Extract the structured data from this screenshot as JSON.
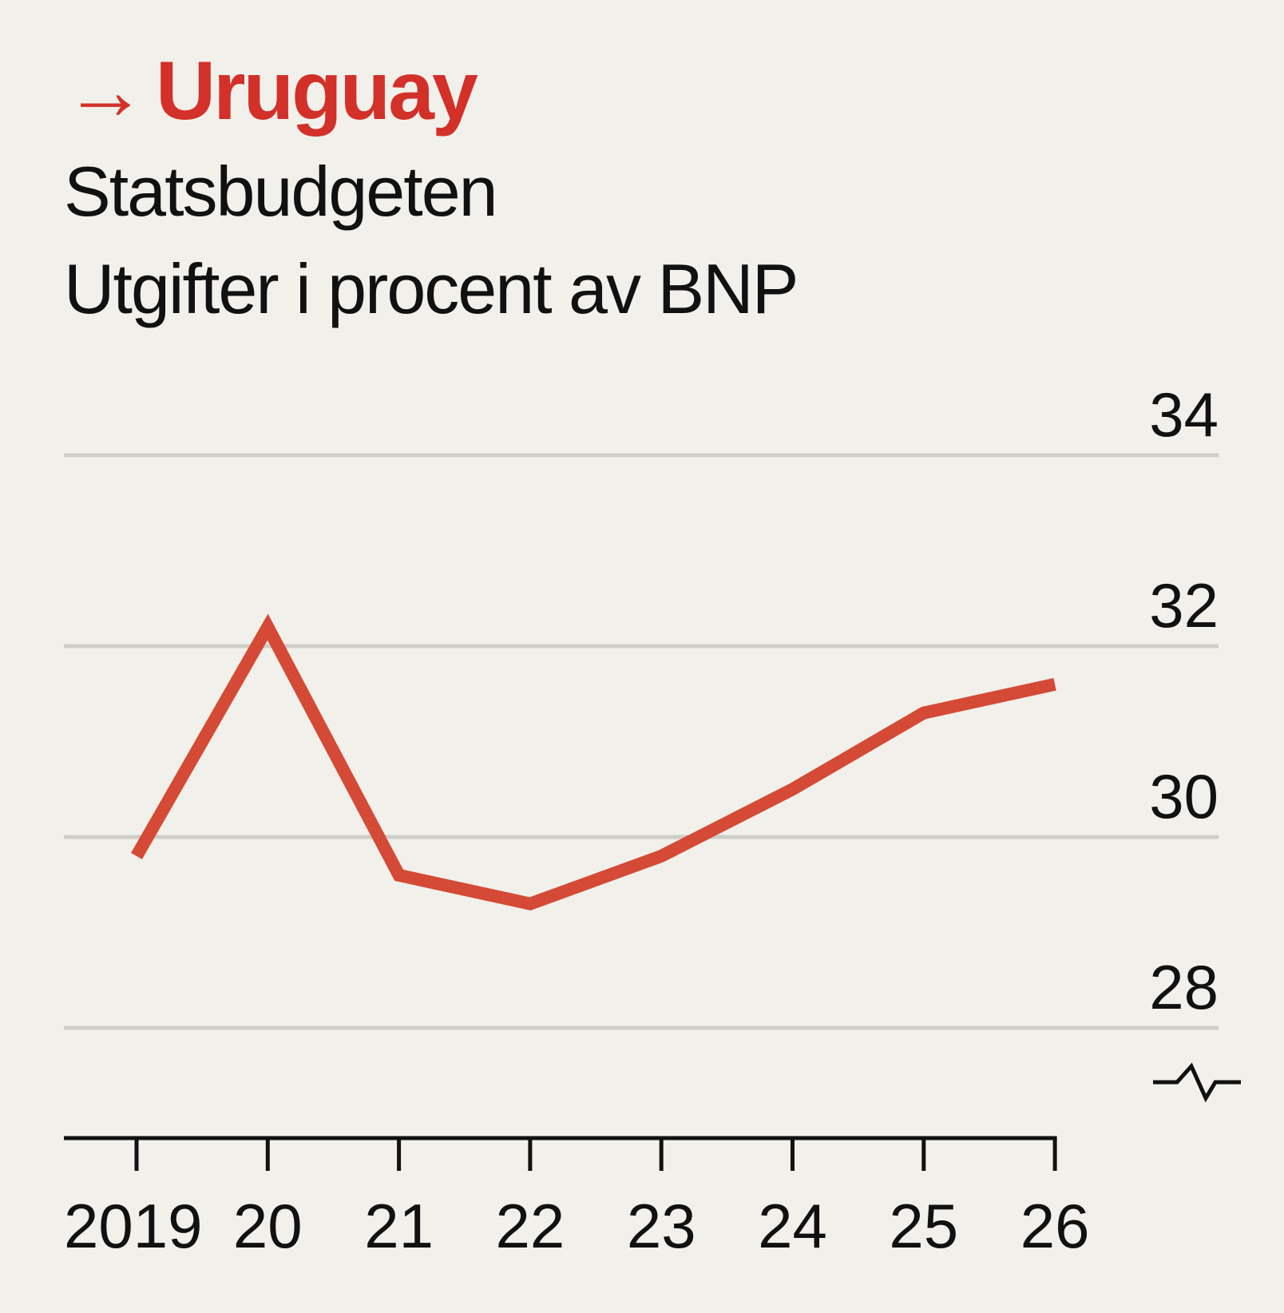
{
  "header": {
    "kicker_arrow": "→",
    "kicker": "Uruguay",
    "title": "Statsbudgeten",
    "subtitle": "Utgifter i procent av BNP"
  },
  "colors": {
    "accent": "#d3302a",
    "line": "#d44a36",
    "grid": "#cfcdc8",
    "text": "#111111",
    "background": "#f2f0ea"
  },
  "chart_data": {
    "type": "line",
    "title": "Statsbudgeten",
    "subtitle": "Utgifter i procent av BNP",
    "xlabel": "",
    "ylabel": "",
    "categories": [
      "2019",
      "20",
      "21",
      "22",
      "23",
      "24",
      "25",
      "26"
    ],
    "series": [
      {
        "name": "Uruguay",
        "values": [
          29.8,
          32.2,
          29.6,
          29.3,
          29.8,
          30.5,
          31.3,
          31.6
        ]
      }
    ],
    "yticks": [
      28,
      30,
      32,
      34
    ],
    "ylim": [
      28,
      34
    ],
    "axis_break": true,
    "grid": true,
    "ytick_side": "right"
  }
}
